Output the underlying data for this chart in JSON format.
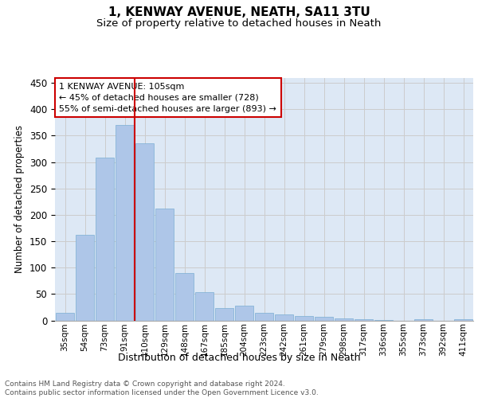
{
  "title1": "1, KENWAY AVENUE, NEATH, SA11 3TU",
  "title2": "Size of property relative to detached houses in Neath",
  "xlabel": "Distribution of detached houses by size in Neath",
  "ylabel": "Number of detached properties",
  "categories": [
    "35sqm",
    "54sqm",
    "73sqm",
    "91sqm",
    "110sqm",
    "129sqm",
    "148sqm",
    "167sqm",
    "185sqm",
    "204sqm",
    "223sqm",
    "242sqm",
    "261sqm",
    "279sqm",
    "298sqm",
    "317sqm",
    "336sqm",
    "355sqm",
    "373sqm",
    "392sqm",
    "411sqm"
  ],
  "values": [
    15,
    162,
    308,
    370,
    335,
    212,
    90,
    53,
    23,
    28,
    14,
    11,
    9,
    7,
    4,
    3,
    1,
    0,
    2,
    0,
    3
  ],
  "bar_color": "#aec6e8",
  "bar_edge_color": "#7bafd4",
  "property_line_color": "#cc0000",
  "annotation_text": "1 KENWAY AVENUE: 105sqm\n← 45% of detached houses are smaller (728)\n55% of semi-detached houses are larger (893) →",
  "annotation_box_color": "#ffffff",
  "annotation_box_edge": "#cc0000",
  "footnote": "Contains HM Land Registry data © Crown copyright and database right 2024.\nContains public sector information licensed under the Open Government Licence v3.0.",
  "ylim": [
    0,
    460
  ],
  "yticks": [
    0,
    50,
    100,
    150,
    200,
    250,
    300,
    350,
    400,
    450
  ],
  "grid_color": "#cccccc",
  "bg_color": "#dde8f5",
  "fig_bg": "#ffffff"
}
